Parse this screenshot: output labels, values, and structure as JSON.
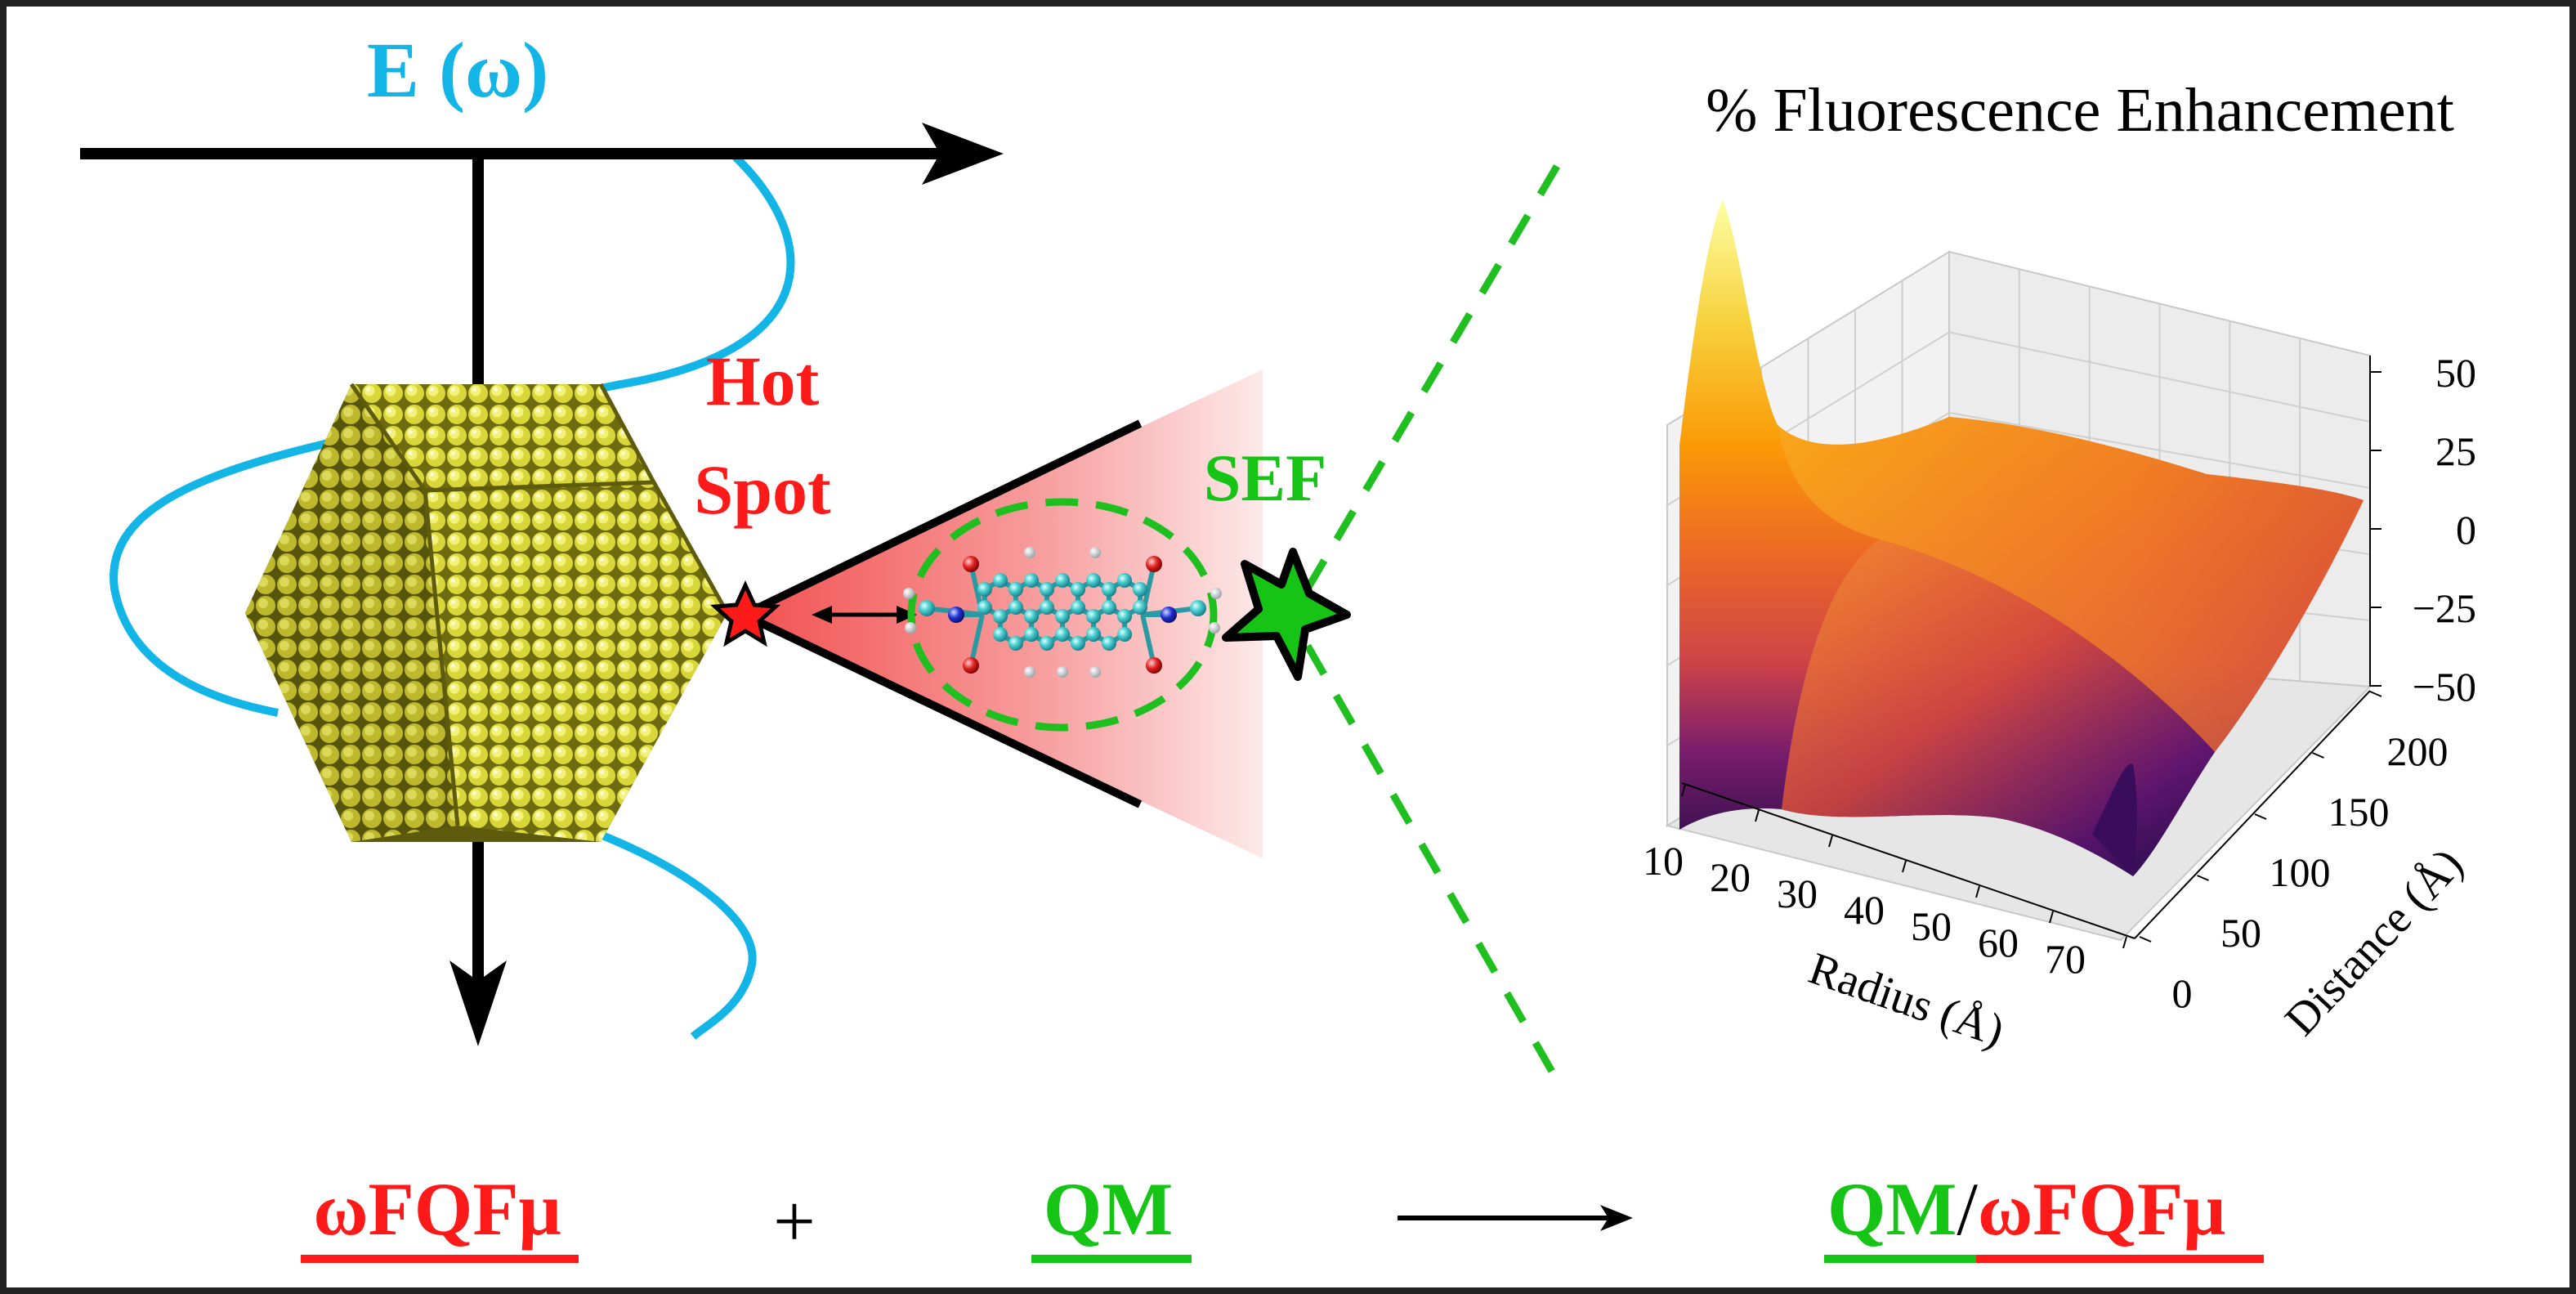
{
  "field": {
    "label": "E (ω)"
  },
  "hotspot": {
    "line1": "Hot",
    "line2": "Spot"
  },
  "sef": {
    "label": "SEF"
  },
  "plot": {
    "title": "% Fluorescence Enhancement",
    "z_ticks": [
      "50",
      "25",
      "0",
      "−25",
      "−50"
    ],
    "radius_ticks": [
      "10",
      "20",
      "30",
      "40",
      "50",
      "60",
      "70"
    ],
    "distance_ticks": [
      "0",
      "50",
      "100",
      "150",
      "200"
    ],
    "xlabel": "Radius (Å)",
    "ylabel": "Distance (Å)"
  },
  "equation": {
    "term1": "ωFQFμ",
    "plus": "+",
    "term2": "QM",
    "result_a": "QM",
    "result_sep": "/",
    "result_b": "ωFQFμ"
  },
  "colors": {
    "field": "#13b5e6",
    "hotspot": "#ff1a1a",
    "sef": "#16c416",
    "gold": "#eded5a",
    "frame": "#222222"
  }
}
